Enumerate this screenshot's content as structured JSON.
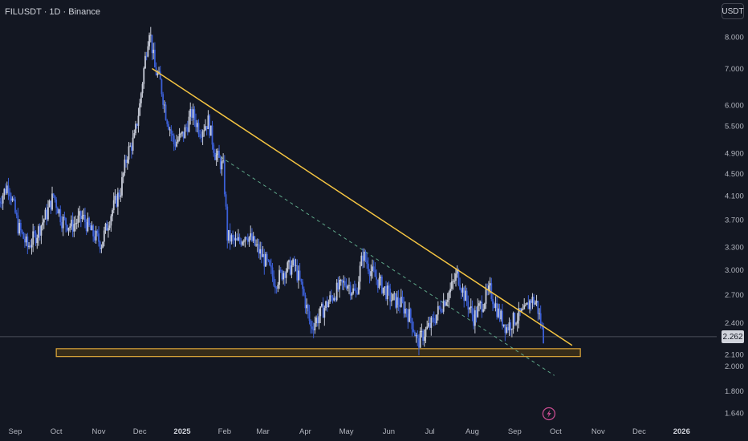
{
  "header": {
    "symbol_line": "FILUSDT · 1D · Binance"
  },
  "toolbar": {
    "currency_label": "USDT"
  },
  "colors": {
    "background": "#131722",
    "candle_up": "#c8ccd8",
    "candle_down": "#3b5fd6",
    "resistance_line": "#f5c542",
    "support_zone_fill": "#3b2f18",
    "support_zone_stroke": "#e0a93a",
    "dashed_channel": "#5fa88a",
    "lightning_icon": "#c74b8f"
  },
  "icons": {
    "event_marker": "lightning-icon"
  },
  "chart_data": {
    "type": "candlestick",
    "y_scale": "log",
    "ylim": [
      1.6,
      9.3
    ],
    "current_price_label": "2.262",
    "y_ticks": [
      "8.000",
      "7.000",
      "6.000",
      "5.500",
      "4.900",
      "4.500",
      "4.100",
      "3.700",
      "3.300",
      "3.000",
      "2.700",
      "2.400",
      "2.100",
      "2.000",
      "1.800",
      "1.640"
    ],
    "x_ticks": [
      {
        "label": "Sep",
        "bold": false
      },
      {
        "label": "Oct",
        "bold": false
      },
      {
        "label": "Nov",
        "bold": false
      },
      {
        "label": "Dec",
        "bold": false
      },
      {
        "label": "2025",
        "bold": true
      },
      {
        "label": "Feb",
        "bold": false
      },
      {
        "label": "Mar",
        "bold": false
      },
      {
        "label": "Apr",
        "bold": false
      },
      {
        "label": "May",
        "bold": false
      },
      {
        "label": "Jun",
        "bold": false
      },
      {
        "label": "Jul",
        "bold": false
      },
      {
        "label": "Aug",
        "bold": false
      },
      {
        "label": "Sep",
        "bold": false
      },
      {
        "label": "Oct",
        "bold": false
      },
      {
        "label": "Nov",
        "bold": false
      },
      {
        "label": "Dec",
        "bold": false
      },
      {
        "label": "2026",
        "bold": true
      }
    ],
    "close_series": [
      [
        "2024-08-20",
        4.0
      ],
      [
        "2024-08-27",
        4.3
      ],
      [
        "2024-09-03",
        3.6
      ],
      [
        "2024-09-10",
        3.3
      ],
      [
        "2024-09-17",
        3.5
      ],
      [
        "2024-09-24",
        3.8
      ],
      [
        "2024-09-29",
        4.1
      ],
      [
        "2024-10-05",
        3.7
      ],
      [
        "2024-10-12",
        3.6
      ],
      [
        "2024-10-20",
        3.75
      ],
      [
        "2024-10-27",
        3.5
      ],
      [
        "2024-11-03",
        3.35
      ],
      [
        "2024-11-10",
        3.8
      ],
      [
        "2024-11-17",
        4.2
      ],
      [
        "2024-11-22",
        4.9
      ],
      [
        "2024-11-27",
        5.2
      ],
      [
        "2024-12-01",
        6.0
      ],
      [
        "2024-12-05",
        7.3
      ],
      [
        "2024-12-08",
        8.3
      ],
      [
        "2024-12-12",
        7.0
      ],
      [
        "2024-12-16",
        6.6
      ],
      [
        "2024-12-20",
        5.8
      ],
      [
        "2024-12-26",
        5.1
      ],
      [
        "2025-01-02",
        5.3
      ],
      [
        "2025-01-08",
        5.8
      ],
      [
        "2025-01-14",
        5.4
      ],
      [
        "2025-01-20",
        5.6
      ],
      [
        "2025-01-25",
        4.9
      ],
      [
        "2025-01-31",
        4.6
      ],
      [
        "2025-02-03",
        3.45
      ],
      [
        "2025-02-10",
        3.35
      ],
      [
        "2025-02-17",
        3.5
      ],
      [
        "2025-02-24",
        3.3
      ],
      [
        "2025-03-03",
        3.1
      ],
      [
        "2025-03-10",
        2.85
      ],
      [
        "2025-03-17",
        3.0
      ],
      [
        "2025-03-24",
        3.05
      ],
      [
        "2025-03-30",
        2.75
      ],
      [
        "2025-04-05",
        2.35
      ],
      [
        "2025-04-10",
        2.45
      ],
      [
        "2025-04-17",
        2.6
      ],
      [
        "2025-04-24",
        2.75
      ],
      [
        "2025-05-01",
        2.85
      ],
      [
        "2025-05-08",
        2.7
      ],
      [
        "2025-05-13",
        3.2
      ],
      [
        "2025-05-20",
        2.95
      ],
      [
        "2025-05-27",
        2.8
      ],
      [
        "2025-06-03",
        2.65
      ],
      [
        "2025-06-10",
        2.6
      ],
      [
        "2025-06-17",
        2.45
      ],
      [
        "2025-06-22",
        2.2
      ],
      [
        "2025-06-27",
        2.3
      ],
      [
        "2025-07-03",
        2.4
      ],
      [
        "2025-07-10",
        2.6
      ],
      [
        "2025-07-16",
        2.75
      ],
      [
        "2025-07-21",
        2.95
      ],
      [
        "2025-07-26",
        2.7
      ],
      [
        "2025-08-02",
        2.45
      ],
      [
        "2025-08-08",
        2.6
      ],
      [
        "2025-08-14",
        2.75
      ],
      [
        "2025-08-20",
        2.5
      ],
      [
        "2025-08-26",
        2.35
      ],
      [
        "2025-09-02",
        2.45
      ],
      [
        "2025-09-08",
        2.5
      ],
      [
        "2025-09-13",
        2.65
      ],
      [
        "2025-09-17",
        2.6
      ],
      [
        "2025-09-22",
        2.26
      ]
    ],
    "resistance_line": [
      [
        "2024-12-10",
        7.0
      ],
      [
        "2025-10-13",
        2.18
      ]
    ],
    "dashed_line": [
      [
        "2025-01-25",
        4.9
      ],
      [
        "2025-09-30",
        1.92
      ]
    ],
    "support_zone": {
      "x_start": "2024-10-01",
      "x_end": "2025-10-19",
      "y_low": 2.08,
      "y_high": 2.15
    },
    "current_price": 2.262,
    "event_marker_date": "2025-09-26"
  }
}
